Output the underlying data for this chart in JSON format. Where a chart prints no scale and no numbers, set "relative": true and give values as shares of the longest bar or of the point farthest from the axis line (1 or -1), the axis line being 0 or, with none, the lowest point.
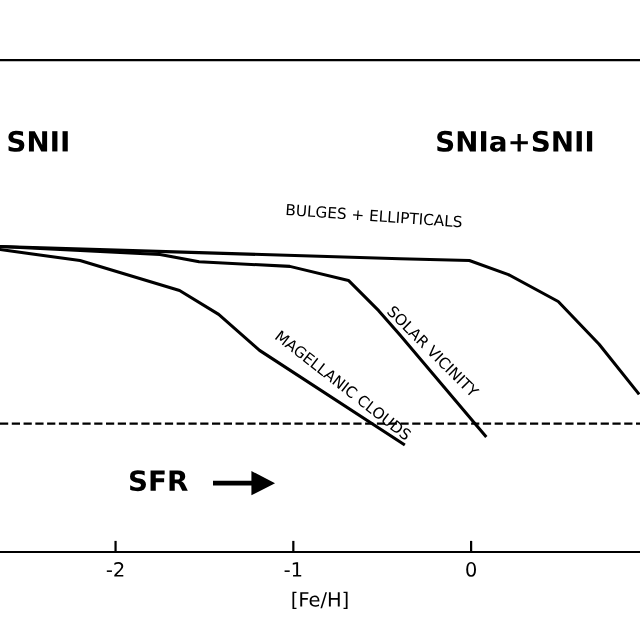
{
  "chart_data": {
    "type": "line",
    "relative": true,
    "xlabel": "[Fe/H]",
    "xlim": [
      -2.65,
      0.95
    ],
    "xticks": [
      -2,
      -1,
      0
    ],
    "series": [
      {
        "name": "BULGES + ELLIPTICALS",
        "color": "#000000",
        "x": [
          -2.65,
          -1.53,
          -0.4,
          -0.01,
          0.21,
          0.49,
          0.72,
          0.94
        ],
        "values": [
          1.0,
          0.98,
          0.96,
          0.954,
          0.908,
          0.82,
          0.68,
          0.52
        ]
      },
      {
        "name": "SOLAR VICINITY",
        "color": "#000000",
        "x": [
          -2.65,
          -1.75,
          -1.53,
          -1.02,
          -0.69,
          -0.52,
          -0.4,
          0.08
        ],
        "values": [
          1.0,
          0.974,
          0.95,
          0.935,
          0.889,
          0.79,
          0.71,
          0.38
        ]
      },
      {
        "name": "MAGELLANIC CLOUDS",
        "color": "#000000",
        "x": [
          -2.65,
          -2.2,
          -1.64,
          -1.42,
          -1.19,
          -0.38
        ],
        "values": [
          0.99,
          0.954,
          0.856,
          0.778,
          0.66,
          0.353
        ]
      }
    ],
    "ref_lines": [
      {
        "axis": "y",
        "value": 0.42,
        "line_style": "dashed",
        "color": "#000000"
      }
    ],
    "annotations": [
      "SNII",
      "SNIa+SNII",
      "SFR"
    ],
    "grid": false,
    "legend": false,
    "line_style": "solid",
    "marker": "none"
  }
}
